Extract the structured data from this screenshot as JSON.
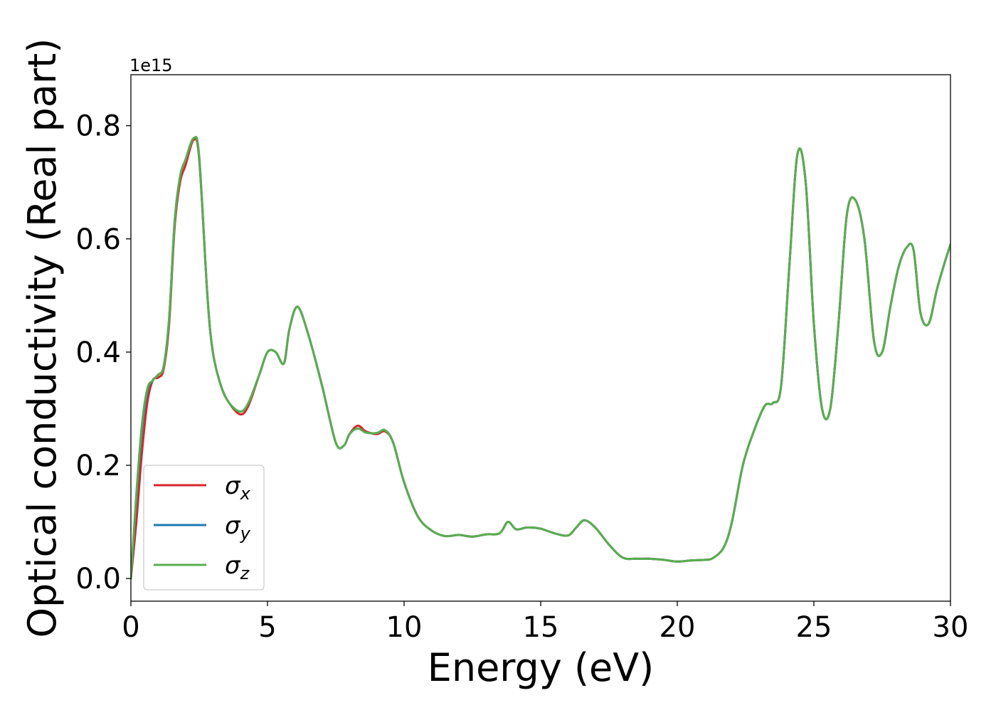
{
  "chart_data": {
    "type": "line",
    "xlabel": "Energy (eV)",
    "ylabel": "Optical conductivity (Real part)",
    "y_offset_label": "1e15",
    "xlim": [
      0,
      30
    ],
    "ylim": [
      -0.04,
      0.89
    ],
    "x_ticks": [
      0,
      5,
      10,
      15,
      20,
      25,
      30
    ],
    "x_tick_labels": [
      "0",
      "5",
      "10",
      "15",
      "20",
      "25",
      "30"
    ],
    "y_ticks": [
      0.0,
      0.2,
      0.4,
      0.6,
      0.8
    ],
    "y_tick_labels": [
      "0.0",
      "0.2",
      "0.4",
      "0.6",
      "0.8"
    ],
    "legend_placement": "lower-left",
    "series": [
      {
        "name": "σx",
        "symbol": "σ",
        "subscript": "x",
        "color": "#d62728",
        "x": [
          0,
          0.2,
          0.4,
          0.6,
          0.8,
          1.0,
          1.2,
          1.4,
          1.6,
          1.8,
          2.0,
          2.3,
          2.5,
          2.8,
          3.0,
          3.3,
          3.6,
          4.0,
          4.3,
          4.7,
          5.0,
          5.3,
          5.6,
          5.8,
          6.1,
          6.5,
          7.0,
          7.5,
          7.8,
          8.0,
          8.3,
          8.6,
          9.0,
          9.3,
          9.6,
          10.0,
          10.5,
          11.0,
          11.5,
          12.0,
          12.5,
          13.0,
          13.5,
          13.8,
          14.1,
          14.5,
          15.0,
          15.5,
          16.0,
          16.3,
          16.6,
          17.0,
          17.5,
          18.0,
          18.5,
          19.0,
          19.5,
          20.0,
          20.5,
          21.0,
          21.3,
          21.7,
          22.0,
          22.4,
          22.8,
          23.2,
          23.5,
          23.8,
          24.1,
          24.4,
          24.7,
          25.0,
          25.3,
          25.6,
          25.9,
          26.2,
          26.5,
          26.85,
          27.2,
          27.5,
          27.8,
          28.1,
          28.4,
          28.65,
          28.9,
          29.2,
          29.5,
          29.8,
          30.0
        ],
        "values": [
          0.0,
          0.1,
          0.22,
          0.31,
          0.35,
          0.355,
          0.37,
          0.45,
          0.62,
          0.7,
          0.73,
          0.775,
          0.74,
          0.5,
          0.4,
          0.34,
          0.31,
          0.29,
          0.305,
          0.36,
          0.4,
          0.4,
          0.38,
          0.44,
          0.48,
          0.43,
          0.34,
          0.24,
          0.235,
          0.255,
          0.27,
          0.26,
          0.255,
          0.26,
          0.24,
          0.17,
          0.11,
          0.085,
          0.075,
          0.077,
          0.074,
          0.078,
          0.08,
          0.1,
          0.087,
          0.09,
          0.088,
          0.08,
          0.076,
          0.09,
          0.103,
          0.09,
          0.06,
          0.037,
          0.035,
          0.035,
          0.033,
          0.03,
          0.032,
          0.033,
          0.036,
          0.055,
          0.1,
          0.2,
          0.26,
          0.305,
          0.31,
          0.34,
          0.55,
          0.75,
          0.7,
          0.45,
          0.3,
          0.3,
          0.45,
          0.64,
          0.67,
          0.6,
          0.42,
          0.4,
          0.48,
          0.55,
          0.585,
          0.58,
          0.47,
          0.45,
          0.51,
          0.56,
          0.59
        ]
      },
      {
        "name": "σy",
        "symbol": "σ",
        "subscript": "y",
        "color": "#1f77b4",
        "x": [
          0,
          0.2,
          0.4,
          0.6,
          0.8,
          1.0,
          1.2,
          1.4,
          1.6,
          1.8,
          2.0,
          2.3,
          2.5,
          2.8,
          3.0,
          3.3,
          3.6,
          4.0,
          4.3,
          4.7,
          5.0,
          5.3,
          5.6,
          5.8,
          6.1,
          6.5,
          7.0,
          7.5,
          7.8,
          8.0,
          8.3,
          8.6,
          9.0,
          9.3,
          9.6,
          10.0,
          10.5,
          11.0,
          11.5,
          12.0,
          12.5,
          13.0,
          13.5,
          13.8,
          14.1,
          14.5,
          15.0,
          15.5,
          16.0,
          16.3,
          16.6,
          17.0,
          17.5,
          18.0,
          18.5,
          19.0,
          19.5,
          20.0,
          20.5,
          21.0,
          21.3,
          21.7,
          22.0,
          22.4,
          22.8,
          23.2,
          23.5,
          23.8,
          24.1,
          24.4,
          24.7,
          25.0,
          25.3,
          25.6,
          25.9,
          26.2,
          26.5,
          26.85,
          27.2,
          27.5,
          27.8,
          28.1,
          28.4,
          28.65,
          28.9,
          29.2,
          29.5,
          29.8,
          30.0
        ],
        "values": [
          0.0,
          0.14,
          0.26,
          0.33,
          0.35,
          0.36,
          0.375,
          0.46,
          0.63,
          0.71,
          0.74,
          0.778,
          0.745,
          0.5,
          0.4,
          0.34,
          0.31,
          0.295,
          0.31,
          0.36,
          0.4,
          0.4,
          0.38,
          0.44,
          0.48,
          0.43,
          0.34,
          0.24,
          0.235,
          0.255,
          0.265,
          0.258,
          0.257,
          0.262,
          0.24,
          0.17,
          0.11,
          0.085,
          0.075,
          0.077,
          0.074,
          0.078,
          0.08,
          0.1,
          0.087,
          0.09,
          0.088,
          0.08,
          0.076,
          0.09,
          0.103,
          0.09,
          0.06,
          0.037,
          0.035,
          0.035,
          0.033,
          0.03,
          0.032,
          0.033,
          0.036,
          0.055,
          0.1,
          0.2,
          0.26,
          0.305,
          0.31,
          0.34,
          0.55,
          0.75,
          0.7,
          0.45,
          0.3,
          0.3,
          0.45,
          0.64,
          0.67,
          0.6,
          0.42,
          0.4,
          0.48,
          0.55,
          0.585,
          0.58,
          0.47,
          0.45,
          0.51,
          0.56,
          0.59
        ]
      },
      {
        "name": "σz",
        "symbol": "σ",
        "subscript": "z",
        "color": "#5aad4f",
        "x": [
          0,
          0.2,
          0.4,
          0.6,
          0.8,
          1.0,
          1.2,
          1.4,
          1.6,
          1.8,
          2.0,
          2.3,
          2.5,
          2.8,
          3.0,
          3.3,
          3.6,
          4.0,
          4.3,
          4.7,
          5.0,
          5.3,
          5.6,
          5.8,
          6.1,
          6.5,
          7.0,
          7.5,
          7.8,
          8.0,
          8.3,
          8.6,
          9.0,
          9.3,
          9.6,
          10.0,
          10.5,
          11.0,
          11.5,
          12.0,
          12.5,
          13.0,
          13.5,
          13.8,
          14.1,
          14.5,
          15.0,
          15.5,
          16.0,
          16.3,
          16.6,
          17.0,
          17.5,
          18.0,
          18.5,
          19.0,
          19.5,
          20.0,
          20.5,
          21.0,
          21.3,
          21.7,
          22.0,
          22.4,
          22.8,
          23.2,
          23.5,
          23.8,
          24.1,
          24.4,
          24.7,
          25.0,
          25.3,
          25.6,
          25.9,
          26.2,
          26.5,
          26.85,
          27.2,
          27.5,
          27.8,
          28.1,
          28.4,
          28.65,
          28.9,
          29.2,
          29.5,
          29.8,
          30.0
        ],
        "values": [
          0.0,
          0.15,
          0.27,
          0.335,
          0.35,
          0.36,
          0.375,
          0.46,
          0.63,
          0.71,
          0.74,
          0.778,
          0.745,
          0.5,
          0.4,
          0.34,
          0.31,
          0.295,
          0.31,
          0.36,
          0.4,
          0.4,
          0.38,
          0.44,
          0.48,
          0.43,
          0.34,
          0.24,
          0.235,
          0.255,
          0.265,
          0.258,
          0.257,
          0.262,
          0.24,
          0.17,
          0.11,
          0.085,
          0.075,
          0.077,
          0.074,
          0.078,
          0.08,
          0.1,
          0.087,
          0.09,
          0.088,
          0.08,
          0.076,
          0.09,
          0.103,
          0.09,
          0.06,
          0.037,
          0.035,
          0.035,
          0.033,
          0.03,
          0.032,
          0.033,
          0.036,
          0.055,
          0.1,
          0.2,
          0.26,
          0.305,
          0.31,
          0.34,
          0.55,
          0.75,
          0.7,
          0.45,
          0.3,
          0.3,
          0.45,
          0.64,
          0.67,
          0.6,
          0.42,
          0.4,
          0.48,
          0.55,
          0.585,
          0.58,
          0.47,
          0.45,
          0.51,
          0.56,
          0.59
        ]
      }
    ]
  }
}
